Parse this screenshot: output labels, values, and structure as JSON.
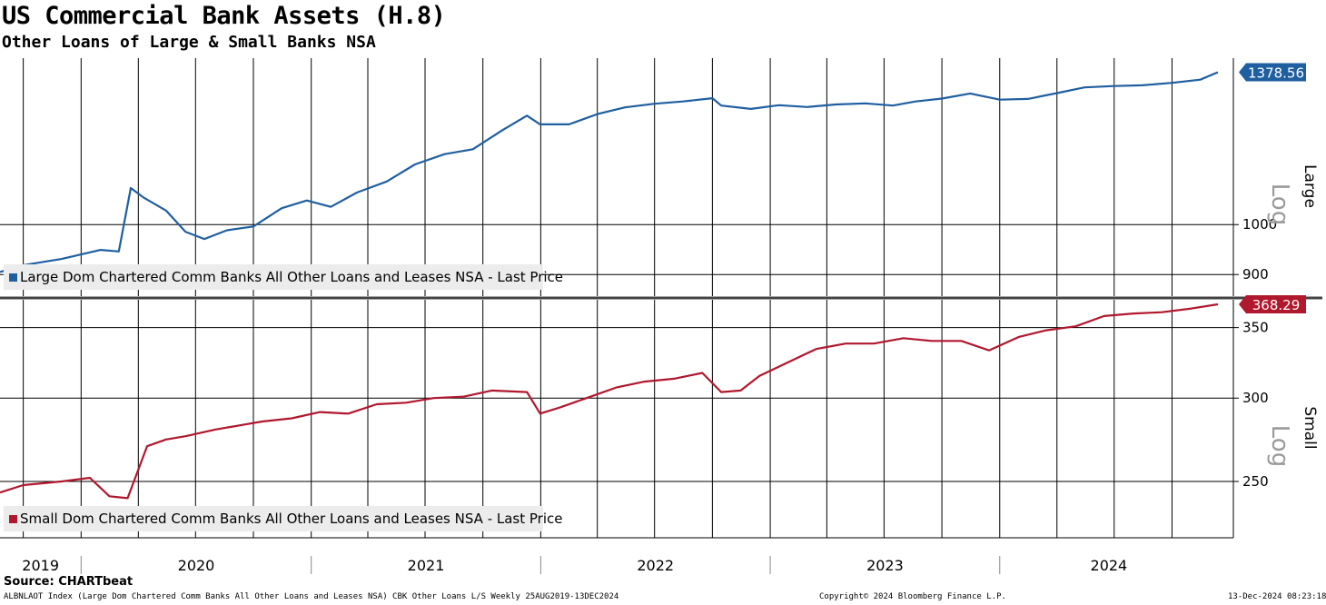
{
  "title": "US Commercial Bank Assets (H.8)",
  "subtitle": "Other Loans of Large & Small Banks NSA",
  "source": "Source: CHARTbeat",
  "footer": {
    "left": "ALBNLAOT Index (Large Dom Chartered Comm Banks All Other Loans and Leases NSA) CBK Other Loans L/S  Weekly 25AUG2019-13DEC2024",
    "center": "Copyright© 2024 Bloomberg Finance L.P.",
    "right": "13-Dec-2024 08:23:18"
  },
  "colors": {
    "large": "#1f5fa0",
    "small": "#b0182d",
    "grid": "#000000",
    "legend_bg": "#ececec"
  },
  "chart_data": [
    {
      "type": "line",
      "panel": "Large",
      "scale": "log",
      "scale_label": "Log",
      "yticks": [
        900,
        1000
      ],
      "ylim": [
        860,
        1420
      ],
      "legend": "Large Dom Chartered Comm Banks All Other Loans and Leases NSA - Last Price",
      "last_price_label": "1378.56",
      "grid": true,
      "series": [
        {
          "name": "Large Dom Chartered Comm Banks All Other Loans and Leases NSA",
          "x": [
            "2019-08-25",
            "2019-10-01",
            "2019-12-01",
            "2020-02-01",
            "2020-03-01",
            "2020-03-20",
            "2020-04-10",
            "2020-05-15",
            "2020-06-15",
            "2020-07-15",
            "2020-08-20",
            "2020-10-01",
            "2020-11-15",
            "2020-12-25",
            "2021-02-01",
            "2021-03-15",
            "2021-05-01",
            "2021-06-15",
            "2021-08-01",
            "2021-09-15",
            "2021-11-01",
            "2021-12-10",
            "2021-12-31",
            "2022-02-15",
            "2022-04-01",
            "2022-05-15",
            "2022-07-01",
            "2022-08-15",
            "2022-10-01",
            "2022-10-15",
            "2022-12-01",
            "2023-01-15",
            "2023-03-01",
            "2023-04-15",
            "2023-06-01",
            "2023-07-15",
            "2023-08-20",
            "2023-10-01",
            "2023-11-15",
            "2024-01-01",
            "2024-02-15",
            "2024-04-01",
            "2024-05-15",
            "2024-07-01",
            "2024-08-15",
            "2024-10-01",
            "2024-11-15",
            "2024-12-13"
          ],
          "values": [
            905,
            918,
            930,
            948,
            945,
            1080,
            1058,
            1030,
            985,
            970,
            988,
            996,
            1035,
            1052,
            1038,
            1070,
            1095,
            1135,
            1160,
            1172,
            1220,
            1258,
            1235,
            1235,
            1262,
            1280,
            1290,
            1296,
            1305,
            1285,
            1276,
            1286,
            1281,
            1288,
            1291,
            1285,
            1296,
            1304,
            1318,
            1301,
            1303,
            1319,
            1335,
            1339,
            1341,
            1348,
            1357,
            1378.56
          ]
        }
      ]
    },
    {
      "type": "line",
      "panel": "Small",
      "scale": "log",
      "scale_label": "Log",
      "yticks": [
        250,
        300,
        350
      ],
      "ylim": [
        221,
        372
      ],
      "legend": "Small Dom Chartered Comm Banks All Other Loans and Leases NSA - Last Price",
      "last_price_label": "368.29",
      "grid": true,
      "series": [
        {
          "name": "Small Dom Chartered Comm Banks All Other Loans and Leases NSA",
          "x": [
            "2019-08-25",
            "2019-10-01",
            "2019-12-01",
            "2020-01-15",
            "2020-02-15",
            "2020-03-15",
            "2020-04-15",
            "2020-05-15",
            "2020-06-15",
            "2020-08-01",
            "2020-09-15",
            "2020-10-15",
            "2020-12-01",
            "2021-01-15",
            "2021-03-01",
            "2021-04-15",
            "2021-06-01",
            "2021-07-15",
            "2021-09-01",
            "2021-10-15",
            "2021-12-10",
            "2021-12-31",
            "2022-02-01",
            "2022-03-15",
            "2022-05-01",
            "2022-06-15",
            "2022-08-01",
            "2022-09-15",
            "2022-10-15",
            "2022-11-15",
            "2022-12-15",
            "2023-02-01",
            "2023-03-15",
            "2023-05-01",
            "2023-06-15",
            "2023-08-01",
            "2023-09-15",
            "2023-11-01",
            "2023-12-15",
            "2024-02-01",
            "2024-03-15",
            "2024-05-01",
            "2024-06-15",
            "2024-08-01",
            "2024-09-15",
            "2024-11-01",
            "2024-12-13"
          ],
          "values": [
            244,
            248,
            250,
            252,
            242,
            241,
            270,
            274,
            276,
            280,
            283,
            285,
            287,
            291,
            290,
            296,
            297,
            300,
            301,
            305,
            304,
            290,
            294,
            300,
            307,
            311,
            313,
            317,
            304,
            305,
            315,
            325,
            334,
            338,
            338,
            342,
            340,
            340,
            333,
            343,
            348,
            351,
            359,
            361,
            362,
            365,
            368.29
          ]
        }
      ]
    }
  ],
  "x_axis": {
    "year_labels": [
      "2019",
      "2020",
      "2021",
      "2022",
      "2023",
      "2024"
    ],
    "start": "2019-08-25",
    "end": "2024-12-13"
  }
}
